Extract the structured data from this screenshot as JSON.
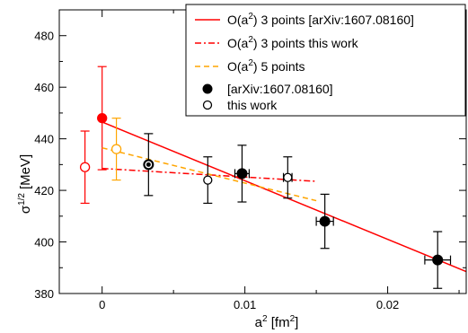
{
  "chart_data": {
    "type": "scatter",
    "title": "",
    "xlabel": "a",
    "xlabel_sup": "2",
    "xlabel_unit": " [fm",
    "xlabel_unit_sup": "2",
    "xlabel_close": "]",
    "ylabel_main": "σ",
    "ylabel_sup": "1/2",
    "ylabel_unit": "[MeV]",
    "xlim": [
      -0.003,
      0.0255
    ],
    "ylim": [
      380,
      490
    ],
    "x_ticks": [
      0,
      0.01,
      0.02
    ],
    "x_tick_labels": [
      "0",
      "0.01",
      "0.02"
    ],
    "y_ticks": [
      380,
      400,
      420,
      440,
      460,
      480
    ],
    "y_tick_labels": [
      "380",
      "400",
      "420",
      "440",
      "460",
      "480"
    ],
    "legend_position": "top-right",
    "colors": {
      "red": "#ff0000",
      "orange": "#ffa500",
      "black": "#000000"
    },
    "series": [
      {
        "name": "[arXiv:1607.08160]",
        "kind": "points",
        "marker": "filled-circle",
        "color": "#000000",
        "points": [
          {
            "x": 0.00325,
            "y": 430.0,
            "yerr": 12.0,
            "xerr": 0
          },
          {
            "x": 0.0098,
            "y": 426.5,
            "yerr": 11.0,
            "xerr": 0.0005
          },
          {
            "x": 0.0156,
            "y": 408.0,
            "yerr": 10.5,
            "xerr": 0.0006
          },
          {
            "x": 0.0235,
            "y": 393.0,
            "yerr": 11.0,
            "xerr": 0.0009
          }
        ]
      },
      {
        "name": "this work",
        "kind": "points",
        "marker": "open-circle",
        "color": "#000000",
        "points": [
          {
            "x": 0.00325,
            "y": 430.0,
            "yerr": 0,
            "xerr": 0
          },
          {
            "x": 0.0074,
            "y": 424.0,
            "yerr": 9.0,
            "xerr": 0
          },
          {
            "x": 0.013,
            "y": 425.0,
            "yerr": 8.0,
            "xerr": 0.0003
          }
        ]
      },
      {
        "name": "O(a²) 3 points [arXiv:1607.08160]",
        "legend_main": "O(a",
        "legend_sup": "2",
        "legend_rest": ") 3 points [arXiv:1607.08160]",
        "kind": "line",
        "style": "solid",
        "color": "#ff0000",
        "x": [
          0,
          0.0255
        ],
        "y": [
          446.5,
          388.5
        ],
        "extrapolated": {
          "x": 0,
          "y": 448.0,
          "yerr": 20.0
        }
      },
      {
        "name": "O(a²) 3 points this work",
        "legend_main": "O(a",
        "legend_sup": "2",
        "legend_rest": ") 3 points this work",
        "kind": "line",
        "style": "dashdot",
        "color": "#ff0000",
        "x": [
          0,
          0.015
        ],
        "y": [
          428.5,
          423.5
        ],
        "extrapolated": {
          "x": -0.0012,
          "y": 429.0,
          "yerr": 14.0
        }
      },
      {
        "name": "O(a²) 5 points",
        "legend_main": "O(a",
        "legend_sup": "2",
        "legend_rest": ") 5 points",
        "kind": "line",
        "style": "dashed",
        "color": "#ffa500",
        "x": [
          0,
          0.015
        ],
        "y": [
          436.5,
          416.0
        ],
        "extrapolated": {
          "x": 0.001,
          "y": 436.0,
          "yerr": 12.0
        }
      }
    ]
  }
}
